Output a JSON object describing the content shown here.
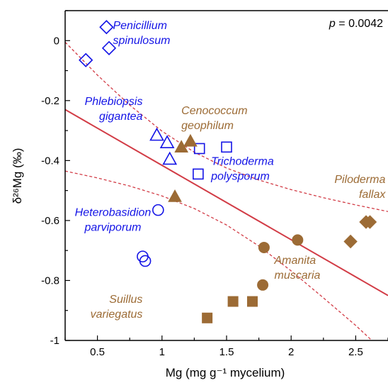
{
  "chart_data": {
    "type": "scatter",
    "xlabel": "Mg (mg g⁻¹ mycelium)",
    "ylabel": "δ²⁶Mg (‰)",
    "xlim": [
      0.25,
      2.75
    ],
    "ylim": [
      -1.0,
      0.1
    ],
    "xticks": [
      0.5,
      1,
      1.5,
      2,
      2.5
    ],
    "xtick_labels": [
      "0.5",
      "1",
      "1.5",
      "2",
      "2.5"
    ],
    "yticks": [
      0,
      -0.2,
      -0.4,
      -0.6,
      -0.8,
      -1
    ],
    "ytick_labels": [
      "0",
      "-0.2",
      "-0.4",
      "-0.6",
      "-0.8",
      "-1"
    ],
    "grid": false,
    "p_value": "p = 0.0042",
    "colors": {
      "blue": "#1414e6",
      "brown": "#9c6b35",
      "fit": "#d23c46"
    },
    "regression": {
      "x": [
        0.25,
        2.75
      ],
      "y": [
        -0.23,
        -0.85
      ]
    },
    "confidence_band": {
      "upper": {
        "x": [
          0.25,
          0.5,
          0.75,
          1.0,
          1.25,
          1.5,
          1.75,
          2.0,
          2.25,
          2.5,
          2.75
        ],
        "y": [
          -0.005,
          -0.115,
          -0.215,
          -0.302,
          -0.372,
          -0.425,
          -0.465,
          -0.497,
          -0.524,
          -0.548,
          -0.57
        ]
      },
      "lower": {
        "x": [
          0.25,
          0.5,
          0.75,
          1.0,
          1.25,
          1.5,
          1.75,
          2.0,
          2.25,
          2.5,
          2.75
        ],
        "y": [
          -0.435,
          -0.458,
          -0.485,
          -0.518,
          -0.56,
          -0.615,
          -0.685,
          -0.768,
          -0.858,
          -0.95,
          -1.05
        ]
      }
    },
    "series": [
      {
        "name": "Penicillium spinulosum",
        "marker": "diamond-open",
        "color": "#1414e6",
        "points": [
          [
            0.57,
            0.045
          ],
          [
            0.59,
            -0.025
          ],
          [
            0.41,
            -0.065
          ]
        ]
      },
      {
        "name": "Phlebiopsis gigantea",
        "marker": "triangle-open",
        "color": "#1414e6",
        "points": [
          [
            0.96,
            -0.315
          ],
          [
            1.04,
            -0.34
          ],
          [
            1.06,
            -0.395
          ]
        ]
      },
      {
        "name": "Trichoderma polysporum",
        "marker": "square-open",
        "color": "#1414e6",
        "points": [
          [
            1.29,
            -0.36
          ],
          [
            1.5,
            -0.355
          ],
          [
            1.28,
            -0.445
          ]
        ]
      },
      {
        "name": "Heterobasidion parviporum",
        "marker": "circle-open",
        "color": "#1414e6",
        "points": [
          [
            0.97,
            -0.565
          ],
          [
            0.85,
            -0.72
          ],
          [
            0.87,
            -0.735
          ]
        ]
      },
      {
        "name": "Cenococcum geophilum",
        "marker": "triangle-filled",
        "color": "#9c6b35",
        "points": [
          [
            1.15,
            -0.355
          ],
          [
            1.22,
            -0.335
          ],
          [
            1.1,
            -0.52
          ]
        ]
      },
      {
        "name": "Piloderma fallax",
        "marker": "diamond-filled",
        "color": "#9c6b35",
        "points": [
          [
            2.58,
            -0.605
          ],
          [
            2.61,
            -0.605
          ],
          [
            2.46,
            -0.67
          ]
        ]
      },
      {
        "name": "Amanita muscaria",
        "marker": "circle-filled",
        "color": "#9c6b35",
        "points": [
          [
            1.79,
            -0.69
          ],
          [
            2.05,
            -0.665
          ],
          [
            1.78,
            -0.815
          ]
        ]
      },
      {
        "name": "Suillus variegatus",
        "marker": "square-filled",
        "color": "#9c6b35",
        "points": [
          [
            1.35,
            -0.925
          ],
          [
            1.55,
            -0.87
          ],
          [
            1.7,
            -0.87
          ]
        ]
      }
    ],
    "annotations": [
      {
        "lines": [
          "Penicillium",
          "spinulosum"
        ],
        "color": "#1414e6",
        "x": 0.62,
        "y": 0.038,
        "anchor": "start"
      },
      {
        "lines": [
          "Phlebiopsis",
          "gigantea"
        ],
        "color": "#1414e6",
        "x": 0.85,
        "y": -0.215,
        "anchor": "end"
      },
      {
        "lines": [
          "Cenococcum",
          "geophilum"
        ],
        "color": "#9c6b35",
        "x": 1.15,
        "y": -0.245,
        "anchor": "start"
      },
      {
        "lines": [
          "Trichoderma",
          "polysporum"
        ],
        "color": "#1414e6",
        "x": 1.38,
        "y": -0.415,
        "anchor": "start"
      },
      {
        "lines": [
          "Piloderma",
          "fallax"
        ],
        "color": "#9c6b35",
        "x": 2.73,
        "y": -0.475,
        "anchor": "end"
      },
      {
        "lines": [
          "Heterobasidion",
          "parviporum"
        ],
        "color": "#1414e6",
        "x": 0.62,
        "y": -0.585,
        "anchor": "middle"
      },
      {
        "lines": [
          "Amanita",
          "muscaria"
        ],
        "color": "#9c6b35",
        "x": 1.87,
        "y": -0.745,
        "anchor": "start"
      },
      {
        "lines": [
          "Suillus",
          "variegatus"
        ],
        "color": "#9c6b35",
        "x": 0.85,
        "y": -0.875,
        "anchor": "end"
      }
    ]
  }
}
